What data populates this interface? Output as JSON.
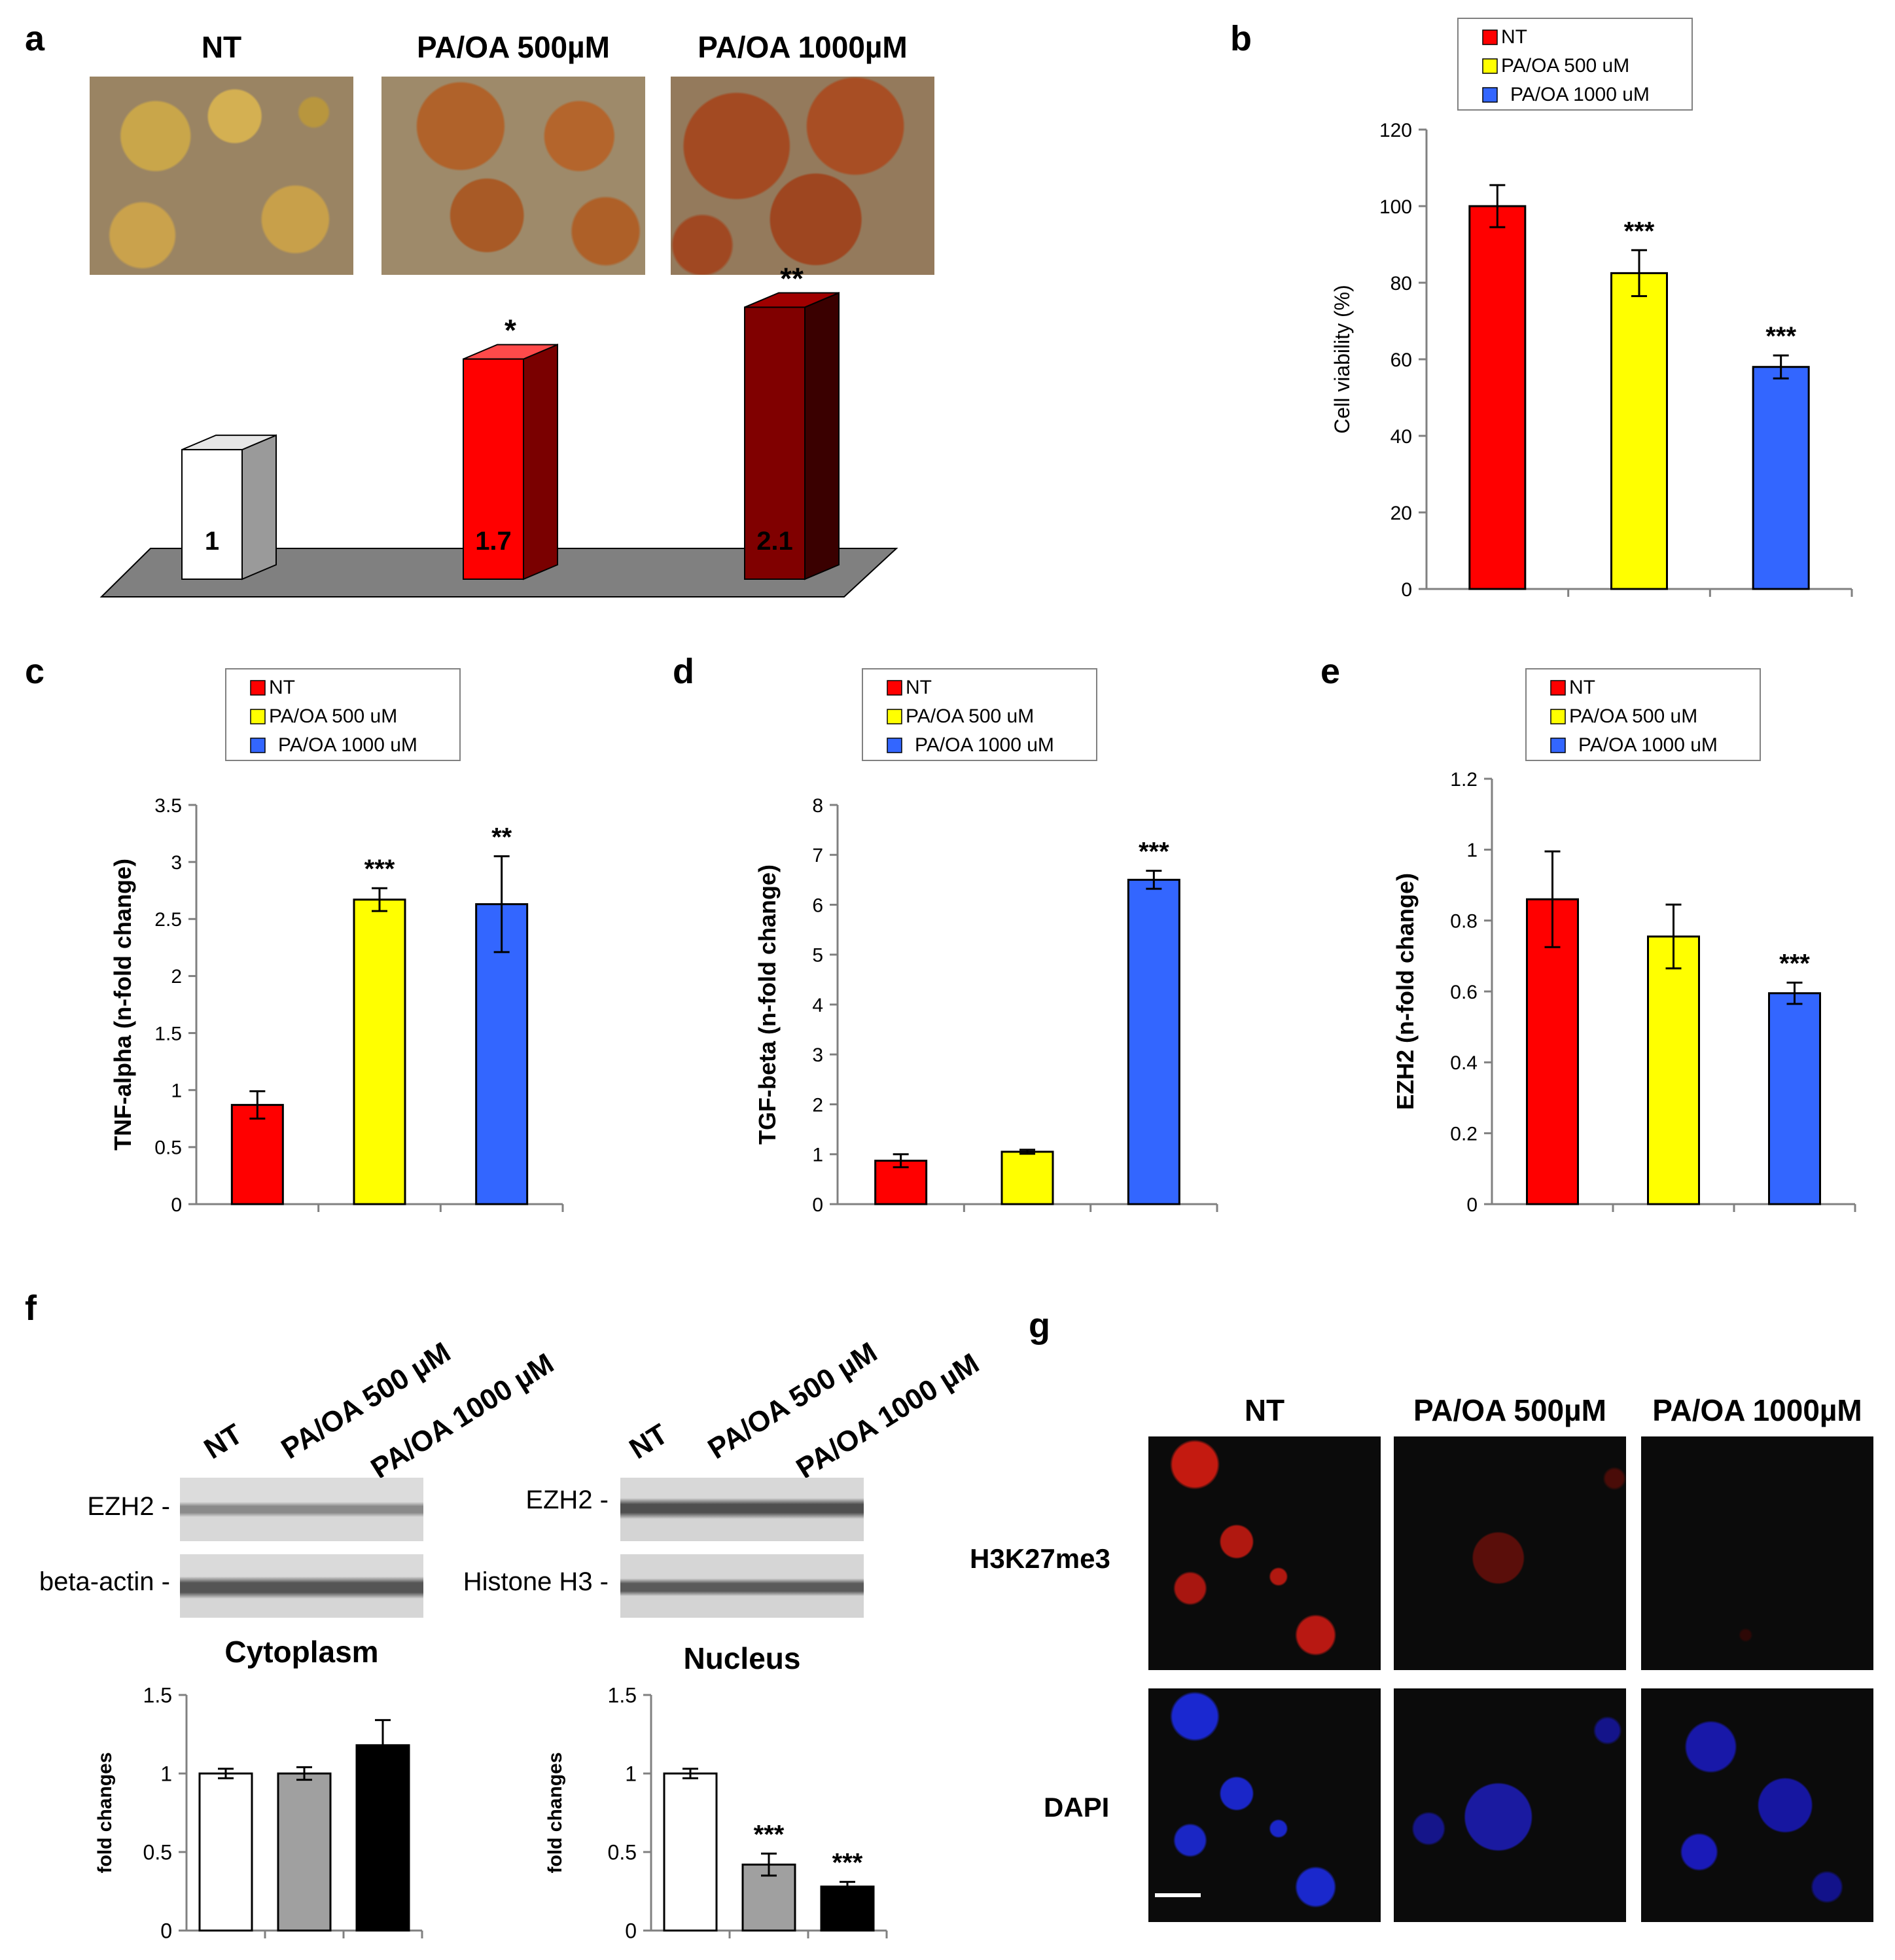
{
  "panel_labels": {
    "a": "a",
    "b": "b",
    "c": "c",
    "d": "d",
    "e": "e",
    "f": "f",
    "g": "g"
  },
  "legend": {
    "nt": "NT",
    "pa500": "PA/OA 500 uM",
    "pa1000": "PA/OA 1000 uM"
  },
  "colors": {
    "nt": "#ff0000",
    "pa500": "#ffff00",
    "pa1000": "#3366ff",
    "dark_red": "#800000",
    "gray": "#a0a0a0"
  },
  "panel_a": {
    "conditions": [
      "NT",
      "PA/OA 500µM",
      "PA/OA 1000µM"
    ],
    "bar_labels": [
      "1",
      "1.7",
      "2.1"
    ]
  },
  "panel_f": {
    "lane_labels": [
      "NT",
      "PA/OA 500 µM",
      "PA/OA 1000 µM"
    ],
    "cytoplasm_rows": [
      "EZH2 -",
      "beta-actin -"
    ],
    "nucleus_rows": [
      "EZH2 -",
      "Histone H3 -"
    ],
    "cytoplasm_title": "Cytoplasm",
    "nucleus_title": "Nucleus"
  },
  "panel_g": {
    "conditions": [
      "NT",
      "PA/OA 500µM",
      "PA/OA 1000µM"
    ],
    "rows": [
      "H3K27me3",
      "DAPI"
    ]
  },
  "chart_data": [
    {
      "id": "a",
      "type": "bar",
      "style": "3d",
      "categories": [
        "NT",
        "PA/OA 500µM",
        "PA/OA 1000µM"
      ],
      "values": [
        1,
        1.7,
        2.1
      ],
      "data_labels": [
        "1",
        "1.7",
        "2.1"
      ],
      "significance": [
        "",
        "*",
        "**"
      ],
      "colors": [
        "#ffffff",
        "#ff0000",
        "#800000"
      ]
    },
    {
      "id": "b",
      "type": "bar",
      "categories": [
        "NT",
        "PA/OA 500 uM",
        "PA/OA 1000 uM"
      ],
      "values": [
        100,
        82.5,
        58
      ],
      "errors": [
        5.5,
        6,
        3
      ],
      "significance": [
        "",
        "***",
        "***"
      ],
      "ylabel": "Cell viability (%)",
      "ylim": [
        0,
        120
      ],
      "yticks": [
        0,
        20,
        40,
        60,
        80,
        100,
        120
      ],
      "legend": [
        "NT",
        "PA/OA 500 uM",
        "PA/OA 1000 uM"
      ],
      "colors": [
        "#ff0000",
        "#ffff00",
        "#3366ff"
      ]
    },
    {
      "id": "c",
      "type": "bar",
      "categories": [
        "NT",
        "PA/OA 500 uM",
        "PA/OA 1000 uM"
      ],
      "values": [
        0.87,
        2.67,
        2.63
      ],
      "errors": [
        0.12,
        0.1,
        0.42
      ],
      "significance": [
        "",
        "***",
        "**"
      ],
      "ylabel": "TNF-alpha (n-fold change)",
      "ylim": [
        0,
        3.5
      ],
      "yticks": [
        0,
        0.5,
        1,
        1.5,
        2,
        2.5,
        3,
        3.5
      ],
      "ytick_labels": [
        "0",
        "0.5",
        "1",
        "1.5",
        "2",
        "2.5",
        "3",
        "3.5"
      ],
      "legend": [
        "NT",
        "PA/OA 500 uM",
        "PA/OA 1000 uM"
      ],
      "colors": [
        "#ff0000",
        "#ffff00",
        "#3366ff"
      ]
    },
    {
      "id": "d",
      "type": "bar",
      "categories": [
        "NT",
        "PA/OA 500 uM",
        "PA/OA 1000 uM"
      ],
      "values": [
        0.87,
        1.05,
        6.5
      ],
      "errors": [
        0.13,
        0.04,
        0.18
      ],
      "significance": [
        "",
        "",
        "***"
      ],
      "ylabel": "TGF-beta (n-fold change)",
      "ylim": [
        0,
        8
      ],
      "yticks": [
        0,
        1,
        2,
        3,
        4,
        5,
        6,
        7,
        8
      ],
      "ytick_labels": [
        "0",
        "1",
        "2",
        "3",
        "4",
        "5",
        "6",
        "7",
        "8"
      ],
      "legend": [
        "NT",
        "PA/OA 500 uM",
        "PA/OA 1000 uM"
      ],
      "colors": [
        "#ff0000",
        "#ffff00",
        "#3366ff"
      ]
    },
    {
      "id": "e",
      "type": "bar",
      "categories": [
        "NT",
        "PA/OA 500 uM",
        "PA/OA 1000 uM"
      ],
      "values": [
        0.86,
        0.755,
        0.595
      ],
      "errors": [
        0.135,
        0.09,
        0.03
      ],
      "significance": [
        "",
        "",
        "***"
      ],
      "ylabel": "EZH2 (n-fold change)",
      "ylim": [
        0,
        1.2
      ],
      "yticks": [
        0,
        0.2,
        0.4,
        0.6,
        0.8,
        1,
        1.2
      ],
      "ytick_labels": [
        "0",
        "0.2",
        "0.4",
        "0.6",
        "0.8",
        "1",
        "1.2"
      ],
      "legend": [
        "NT",
        "PA/OA 500 uM",
        "PA/OA 1000 uM"
      ],
      "colors": [
        "#ff0000",
        "#ffff00",
        "#3366ff"
      ]
    },
    {
      "id": "f-cytoplasm",
      "type": "bar",
      "categories": [
        "NT",
        "PA/OA 500 µM",
        "PA/OA 1000 µM"
      ],
      "values": [
        1.0,
        1.0,
        1.18
      ],
      "errors": [
        0.03,
        0.04,
        0.16
      ],
      "significance": [
        "",
        "",
        ""
      ],
      "ylabel": "fold changes",
      "ylim": [
        0,
        1.5
      ],
      "yticks": [
        0,
        0.5,
        1,
        1.5
      ],
      "ytick_labels": [
        "0",
        "0.5",
        "1",
        "1.5"
      ],
      "colors": [
        "#ffffff",
        "#a0a0a0",
        "#000000"
      ]
    },
    {
      "id": "f-nucleus",
      "type": "bar",
      "categories": [
        "NT",
        "PA/OA 500 µM",
        "PA/OA 1000 µM"
      ],
      "values": [
        1.0,
        0.42,
        0.28
      ],
      "errors": [
        0.03,
        0.07,
        0.03
      ],
      "significance": [
        "",
        "***",
        "***"
      ],
      "ylabel": "fold changes",
      "ylim": [
        0,
        1.5
      ],
      "yticks": [
        0,
        0.5,
        1,
        1.5
      ],
      "ytick_labels": [
        "0",
        "0.5",
        "1",
        "1.5"
      ],
      "colors": [
        "#ffffff",
        "#a0a0a0",
        "#000000"
      ]
    }
  ]
}
